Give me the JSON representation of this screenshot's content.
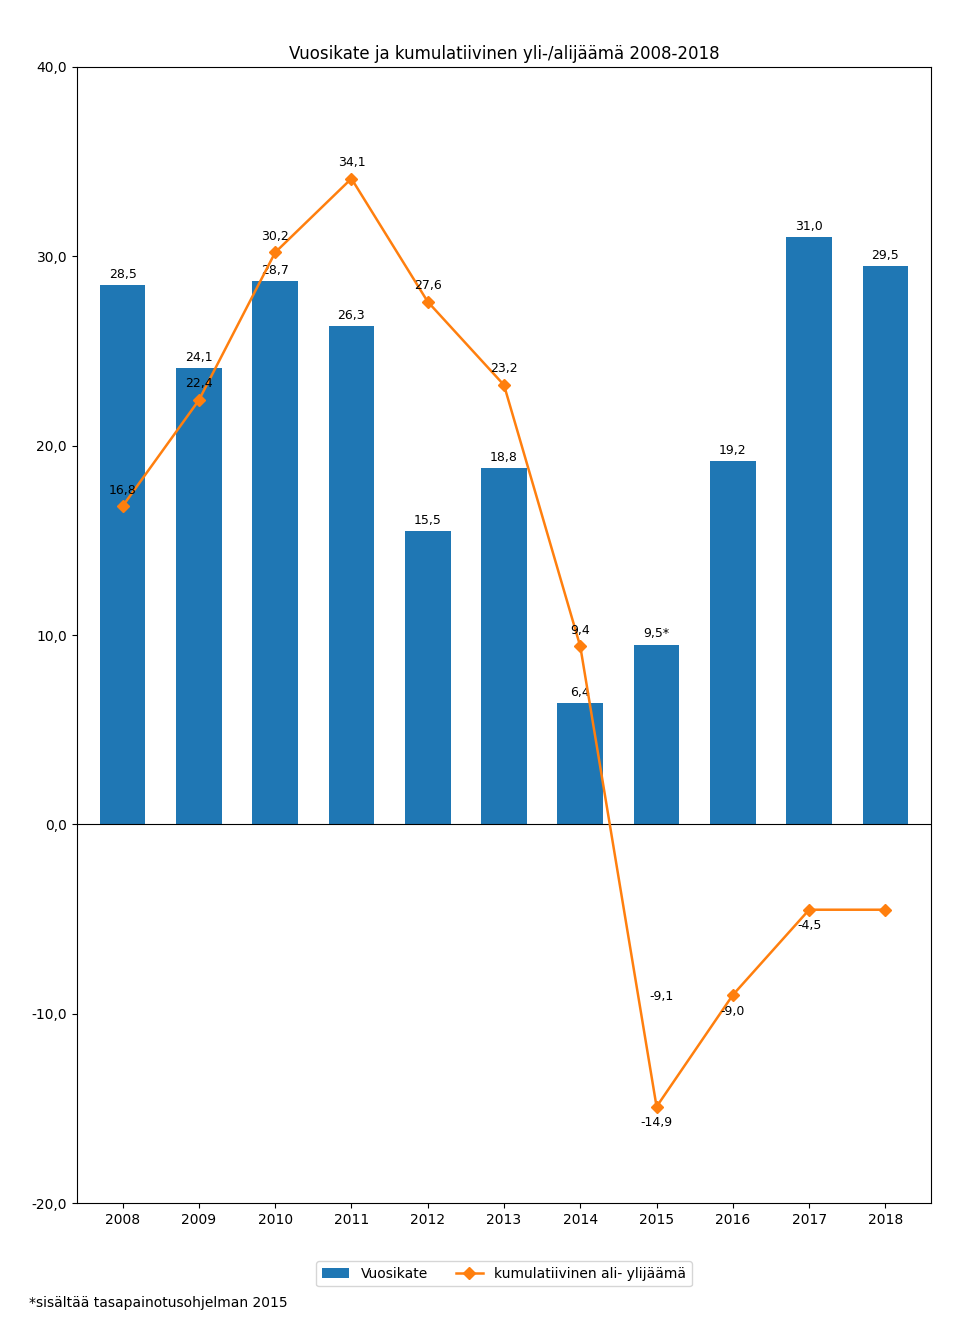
{
  "chart_data": {
    "type": "bar",
    "title": "Vuosikate ja kumulatiivinen yli-/alijäämä 2008-2018",
    "categories": [
      "2008",
      "2009",
      "2010",
      "2011",
      "2012",
      "2013",
      "2014",
      "2015",
      "2016",
      "2017",
      "2018"
    ],
    "series": [
      {
        "name": "Vuosikate",
        "type": "bar",
        "values": [
          28.5,
          24.1,
          28.7,
          26.3,
          15.5,
          18.8,
          6.4,
          9.5,
          19.2,
          31.0,
          29.5
        ],
        "value_labels": [
          "28,5",
          "24,1",
          "28,7",
          "26,3",
          "15,5",
          "18,8",
          "6,4",
          "9,5*",
          "19,2",
          "31,0",
          "29,5"
        ]
      },
      {
        "name": "kumulatiivinen ali- ylijäämä",
        "type": "line",
        "marker": "diamond",
        "values": [
          16.8,
          22.4,
          30.2,
          34.1,
          27.6,
          23.2,
          9.4,
          -14.9,
          -9.0,
          -4.5,
          -4.5
        ],
        "value_labels": [
          "16,8",
          "22,4",
          "30,2",
          "34,1",
          "27,6",
          "23,2",
          "9,4",
          "-14,9",
          "-9,0",
          "-4,5",
          null
        ]
      }
    ],
    "ylim": [
      -20.0,
      40.0
    ],
    "yticks": [
      {
        "value": -20.0,
        "label": "-20,0"
      },
      {
        "value": -10.0,
        "label": "-10,0"
      },
      {
        "value": 0.0,
        "label": "0,0"
      },
      {
        "value": 10.0,
        "label": "10,0"
      },
      {
        "value": 20.0,
        "label": "20,0"
      },
      {
        "value": 30.0,
        "label": "30,0"
      },
      {
        "value": 40.0,
        "label": "40,0"
      }
    ],
    "data_labels": true,
    "legend": "upper center",
    "annotations": [
      {
        "text": "-9,1",
        "x": "2014",
        "y": -9.1
      },
      {
        "text": "*sisältää tasapainotusohjelman 2015"
      }
    ]
  }
}
